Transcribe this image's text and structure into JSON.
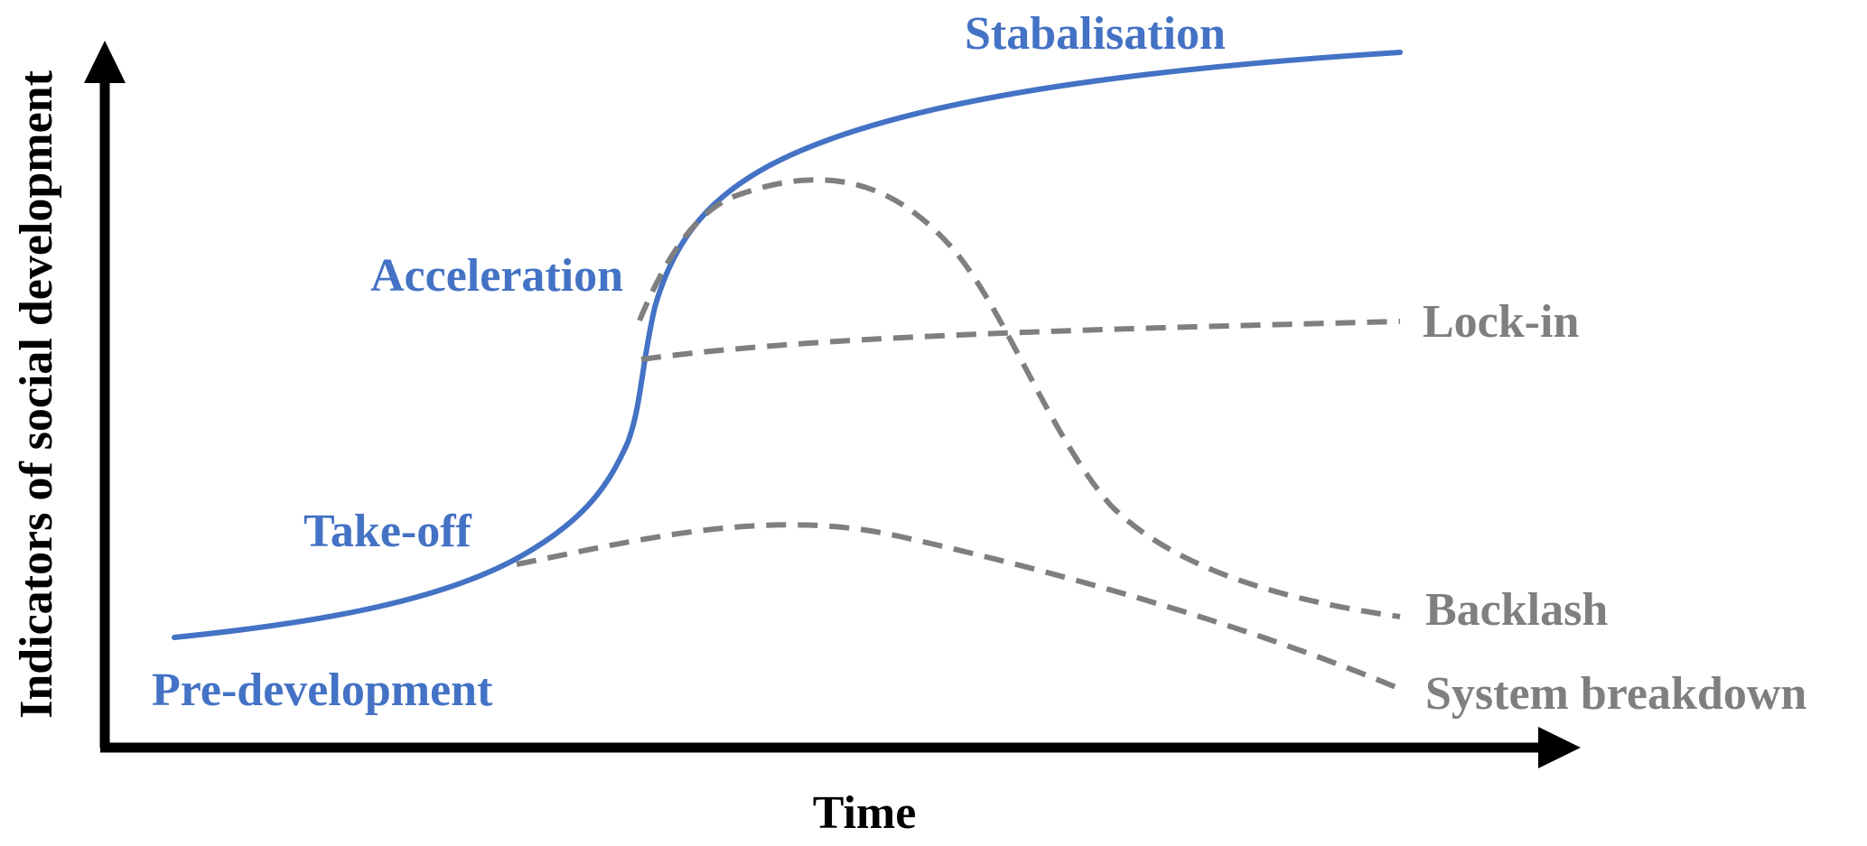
{
  "axes": {
    "x_label": "Time",
    "y_label": "Indicators of social development"
  },
  "phases": {
    "pre_development": "Pre-development",
    "take_off": "Take-off",
    "acceleration": "Acceleration",
    "stabilisation": "Stabalisation"
  },
  "outcomes": {
    "lock_in": "Lock-in",
    "backlash": "Backlash",
    "system_breakdown": "System breakdown"
  },
  "colors": {
    "main_path": "#4472C4",
    "alternative_paths": "#7F7F7F",
    "axes": "#000000"
  }
}
